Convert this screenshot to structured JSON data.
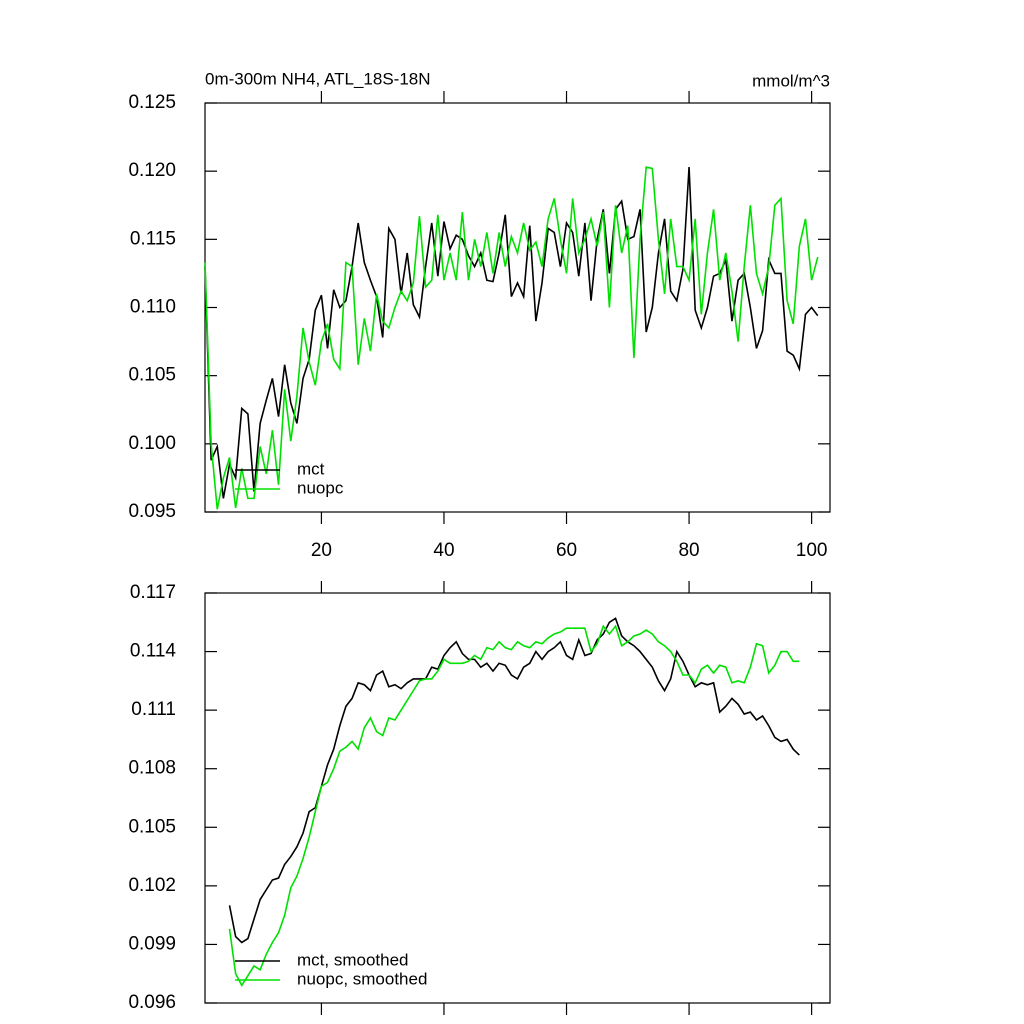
{
  "chart_data": [
    {
      "type": "line",
      "title": "0m-300m NH4, ATL_18S-18N",
      "units": "mmol/m^3",
      "x": [
        1,
        2,
        3,
        4,
        5,
        6,
        7,
        8,
        9,
        10,
        11,
        12,
        13,
        14,
        15,
        16,
        17,
        18,
        19,
        20,
        21,
        22,
        23,
        24,
        25,
        26,
        27,
        28,
        29,
        30,
        31,
        32,
        33,
        34,
        35,
        36,
        37,
        38,
        39,
        40,
        41,
        42,
        43,
        44,
        45,
        46,
        47,
        48,
        49,
        50,
        51,
        52,
        53,
        54,
        55,
        56,
        57,
        58,
        59,
        60,
        61,
        62,
        63,
        64,
        65,
        66,
        67,
        68,
        69,
        70,
        71,
        72,
        73,
        74,
        75,
        76,
        77,
        78,
        79,
        80,
        81,
        82,
        83,
        84,
        85,
        86,
        87,
        88,
        89,
        90,
        91,
        92,
        93,
        94,
        95,
        96,
        97,
        98,
        99,
        100,
        101
      ],
      "series": [
        {
          "name": "mct",
          "color": "#000000",
          "values": [
            0.113,
            0.0988,
            0.0998,
            0.096,
            0.0985,
            0.0975,
            0.1026,
            0.1022,
            0.0965,
            0.1015,
            0.1032,
            0.1048,
            0.102,
            0.1058,
            0.103,
            0.1015,
            0.1048,
            0.1062,
            0.1098,
            0.1109,
            0.107,
            0.1113,
            0.11,
            0.1105,
            0.113,
            0.1162,
            0.1133,
            0.112,
            0.1108,
            0.1078,
            0.1158,
            0.115,
            0.111,
            0.114,
            0.1102,
            0.1093,
            0.113,
            0.1162,
            0.1123,
            0.1163,
            0.1143,
            0.1153,
            0.115,
            0.1138,
            0.113,
            0.114,
            0.112,
            0.1119,
            0.114,
            0.1168,
            0.1108,
            0.1118,
            0.1108,
            0.116,
            0.109,
            0.1118,
            0.1158,
            0.1155,
            0.113,
            0.1162,
            0.1155,
            0.1123,
            0.1162,
            0.1105,
            0.115,
            0.1172,
            0.1125,
            0.1172,
            0.1178,
            0.115,
            0.1152,
            0.1172,
            0.1082,
            0.11,
            0.114,
            0.1165,
            0.1112,
            0.1105,
            0.1128,
            0.1203,
            0.1098,
            0.1085,
            0.11,
            0.1123,
            0.1125,
            0.1135,
            0.109,
            0.112,
            0.1125,
            0.11,
            0.107,
            0.1083,
            0.1135,
            0.1125,
            0.1125,
            0.1068,
            0.1065,
            0.1055,
            0.1095,
            0.11,
            0.1094
          ]
        },
        {
          "name": "nuopc",
          "color": "#00e000",
          "values": [
            0.1133,
            0.1,
            0.0952,
            0.0975,
            0.099,
            0.0953,
            0.0982,
            0.096,
            0.096,
            0.0998,
            0.0978,
            0.101,
            0.097,
            0.104,
            0.1002,
            0.1035,
            0.1085,
            0.106,
            0.1043,
            0.1075,
            0.1088,
            0.1062,
            0.1055,
            0.1133,
            0.113,
            0.1058,
            0.1092,
            0.1068,
            0.111,
            0.109,
            0.1085,
            0.11,
            0.1112,
            0.1105,
            0.1118,
            0.1167,
            0.1115,
            0.112,
            0.1168,
            0.112,
            0.114,
            0.112,
            0.117,
            0.112,
            0.115,
            0.113,
            0.1155,
            0.1125,
            0.1155,
            0.113,
            0.1152,
            0.114,
            0.1162,
            0.1142,
            0.1148,
            0.113,
            0.1165,
            0.118,
            0.115,
            0.1125,
            0.118,
            0.114,
            0.115,
            0.1165,
            0.1145,
            0.117,
            0.11,
            0.1175,
            0.114,
            0.116,
            0.1063,
            0.115,
            0.1203,
            0.1202,
            0.115,
            0.111,
            0.1165,
            0.113,
            0.113,
            0.112,
            0.1165,
            0.1095,
            0.114,
            0.1172,
            0.112,
            0.114,
            0.1112,
            0.1075,
            0.113,
            0.1175,
            0.1125,
            0.111,
            0.113,
            0.1175,
            0.118,
            0.1105,
            0.1088,
            0.1145,
            0.1165,
            0.112,
            0.1137
          ]
        }
      ],
      "xlim": [
        1,
        103
      ],
      "xticks": [
        20,
        40,
        60,
        80,
        100
      ],
      "xtick_labels": true,
      "ylim": [
        0.095,
        0.125
      ],
      "yticks": [
        0.095,
        {
          "value": 0.1,
          "label": "0.100"
        },
        0.105,
        {
          "value": 0.11,
          "label": "0.110"
        },
        0.115,
        {
          "value": 0.12,
          "label": "0.120"
        },
        0.125
      ],
      "legend": "lower left"
    },
    {
      "type": "line",
      "x": [
        5,
        6,
        7,
        8,
        9,
        10,
        11,
        12,
        13,
        14,
        15,
        16,
        17,
        18,
        19,
        20,
        21,
        22,
        23,
        24,
        25,
        26,
        27,
        28,
        29,
        30,
        31,
        32,
        33,
        34,
        35,
        36,
        37,
        38,
        39,
        40,
        41,
        42,
        43,
        44,
        45,
        46,
        47,
        48,
        49,
        50,
        51,
        52,
        53,
        54,
        55,
        56,
        57,
        58,
        59,
        60,
        61,
        62,
        63,
        64,
        65,
        66,
        67,
        68,
        69,
        70,
        71,
        72,
        73,
        74,
        75,
        76,
        77,
        78,
        79,
        80,
        81,
        82,
        83,
        84,
        85,
        86,
        87,
        88,
        89,
        90,
        91,
        92,
        93,
        94,
        95,
        96,
        97,
        98
      ],
      "series": [
        {
          "name": "mct, smoothed",
          "color": "#000000",
          "values": [
            0.101,
            0.0994,
            0.0991,
            0.0993,
            0.1003,
            0.1013,
            0.1018,
            0.1023,
            0.1024,
            0.1031,
            0.1035,
            0.104,
            0.1047,
            0.1058,
            0.106,
            0.1071,
            0.1082,
            0.109,
            0.1102,
            0.1112,
            0.1116,
            0.1124,
            0.1123,
            0.112,
            0.1128,
            0.113,
            0.1122,
            0.1123,
            0.1121,
            0.1124,
            0.1126,
            0.1126,
            0.1126,
            0.1132,
            0.1131,
            0.1138,
            0.1142,
            0.1145,
            0.1139,
            0.1136,
            0.1136,
            0.1132,
            0.1134,
            0.113,
            0.1134,
            0.1133,
            0.1128,
            0.1126,
            0.1132,
            0.1134,
            0.114,
            0.1136,
            0.114,
            0.1142,
            0.1145,
            0.1138,
            0.1136,
            0.1146,
            0.1138,
            0.1139,
            0.1146,
            0.1149,
            0.1155,
            0.1157,
            0.1148,
            0.1145,
            0.1143,
            0.114,
            0.1136,
            0.1132,
            0.1125,
            0.112,
            0.1126,
            0.114,
            0.1135,
            0.1128,
            0.1122,
            0.1124,
            0.1123,
            0.1124,
            0.1109,
            0.1112,
            0.1116,
            0.1113,
            0.1108,
            0.1109,
            0.1105,
            0.1107,
            0.1102,
            0.1096,
            0.1094,
            0.1095,
            0.109,
            0.1087
          ]
        },
        {
          "name": "nuopc, smoothed",
          "color": "#00e000",
          "values": [
            0.0998,
            0.0975,
            0.0969,
            0.0974,
            0.0979,
            0.0977,
            0.0985,
            0.0991,
            0.0996,
            0.1005,
            0.1019,
            0.1025,
            0.1034,
            0.1045,
            0.1058,
            0.1071,
            0.1073,
            0.108,
            0.1089,
            0.1091,
            0.1094,
            0.109,
            0.1101,
            0.1106,
            0.1099,
            0.1097,
            0.1106,
            0.1105,
            0.111,
            0.1115,
            0.112,
            0.1125,
            0.1126,
            0.1126,
            0.113,
            0.1136,
            0.1134,
            0.1134,
            0.1134,
            0.1135,
            0.1138,
            0.1136,
            0.1142,
            0.1141,
            0.1145,
            0.1142,
            0.1141,
            0.1145,
            0.1143,
            0.1142,
            0.1145,
            0.1144,
            0.1147,
            0.1149,
            0.115,
            0.1152,
            0.1152,
            0.1152,
            0.1152,
            0.114,
            0.1144,
            0.1153,
            0.1149,
            0.1153,
            0.1143,
            0.1145,
            0.1148,
            0.1149,
            0.1151,
            0.1149,
            0.1145,
            0.1143,
            0.114,
            0.1135,
            0.1128,
            0.1128,
            0.1124,
            0.1131,
            0.1133,
            0.1129,
            0.1133,
            0.1132,
            0.1124,
            0.1125,
            0.1124,
            0.1132,
            0.1144,
            0.1143,
            0.1129,
            0.1133,
            0.114,
            0.114,
            0.1135,
            0.1135
          ]
        }
      ],
      "xlim": [
        1,
        103
      ],
      "xticks": [
        20,
        40,
        60,
        80,
        100
      ],
      "xtick_labels": false,
      "ylim": [
        0.096,
        0.117
      ],
      "yticks": [
        0.096,
        0.099,
        0.102,
        0.105,
        0.108,
        0.111,
        0.114,
        0.117
      ],
      "legend": "lower left"
    }
  ]
}
